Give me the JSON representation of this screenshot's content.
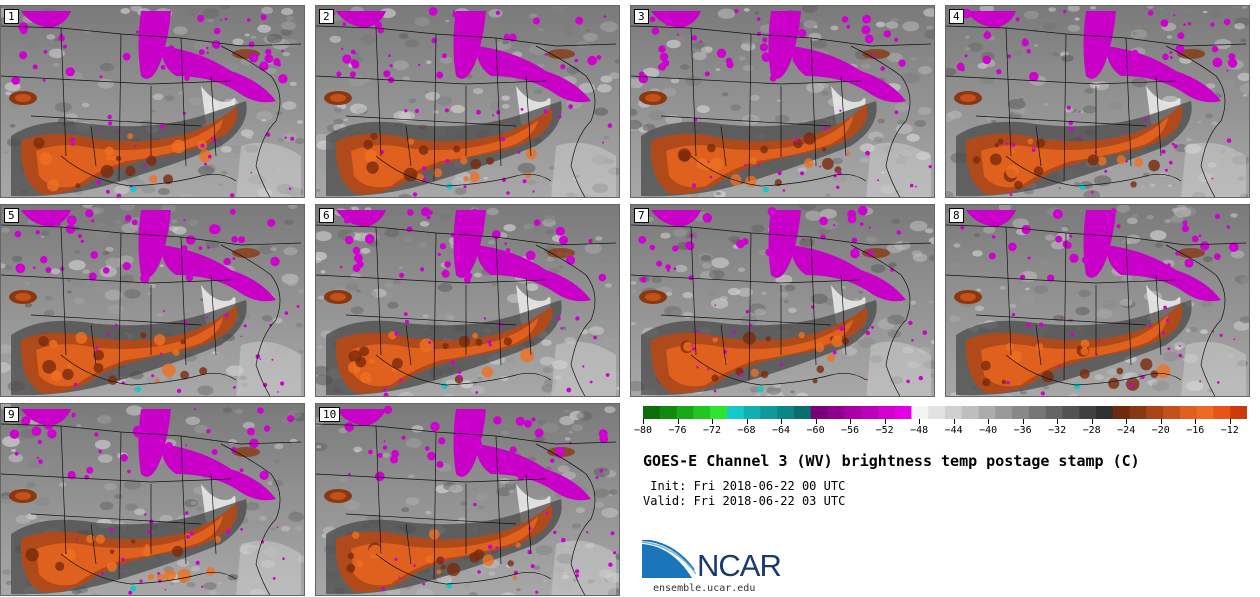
{
  "title": "GOES-E Channel 3 (WV) brightness temp postage stamp (C)",
  "init_time": " Init: Fri 2018-06-22 00 UTC",
  "valid_time": "Valid: Fri 2018-06-22 03 UTC",
  "members": [
    "1",
    "2",
    "3",
    "4",
    "5",
    "6",
    "7",
    "8",
    "9",
    "10"
  ],
  "colorbar": {
    "min": -80,
    "max": -10,
    "tick_labels": [
      "-80",
      "-76",
      "-72",
      "-68",
      "-64",
      "-60",
      "-56",
      "-52",
      "-48",
      "-44",
      "-40",
      "-36",
      "-32",
      "-28",
      "-24",
      "-20",
      "-16",
      "-12"
    ],
    "tick_values": [
      -80,
      -76,
      -72,
      -68,
      -64,
      -60,
      -56,
      -52,
      -48,
      -44,
      -40,
      -36,
      -32,
      -28,
      -24,
      -20,
      -16,
      -12
    ],
    "colors": [
      "#0a6e0a",
      "#118a11",
      "#1aa81a",
      "#22c522",
      "#2ee52e",
      "#16c8c8",
      "#11b0b0",
      "#0e9a9a",
      "#0b8585",
      "#086e6e",
      "#7a007a",
      "#90008f",
      "#a600a6",
      "#bb00bb",
      "#d000d0",
      "#e400e4",
      "#f4f4f4",
      "#e2e2e2",
      "#d0d0d0",
      "#bebebe",
      "#acacac",
      "#9a9a9a",
      "#888888",
      "#767676",
      "#646464",
      "#525252",
      "#404040",
      "#303030",
      "#6e2a0e",
      "#8a3812",
      "#a84416",
      "#c5511a",
      "#e05e1e",
      "#ed6a20",
      "#e85418",
      "#cc3a0c"
    ]
  },
  "logo": {
    "brand": "NCAR",
    "url": "ensemble.ucar.edu"
  }
}
